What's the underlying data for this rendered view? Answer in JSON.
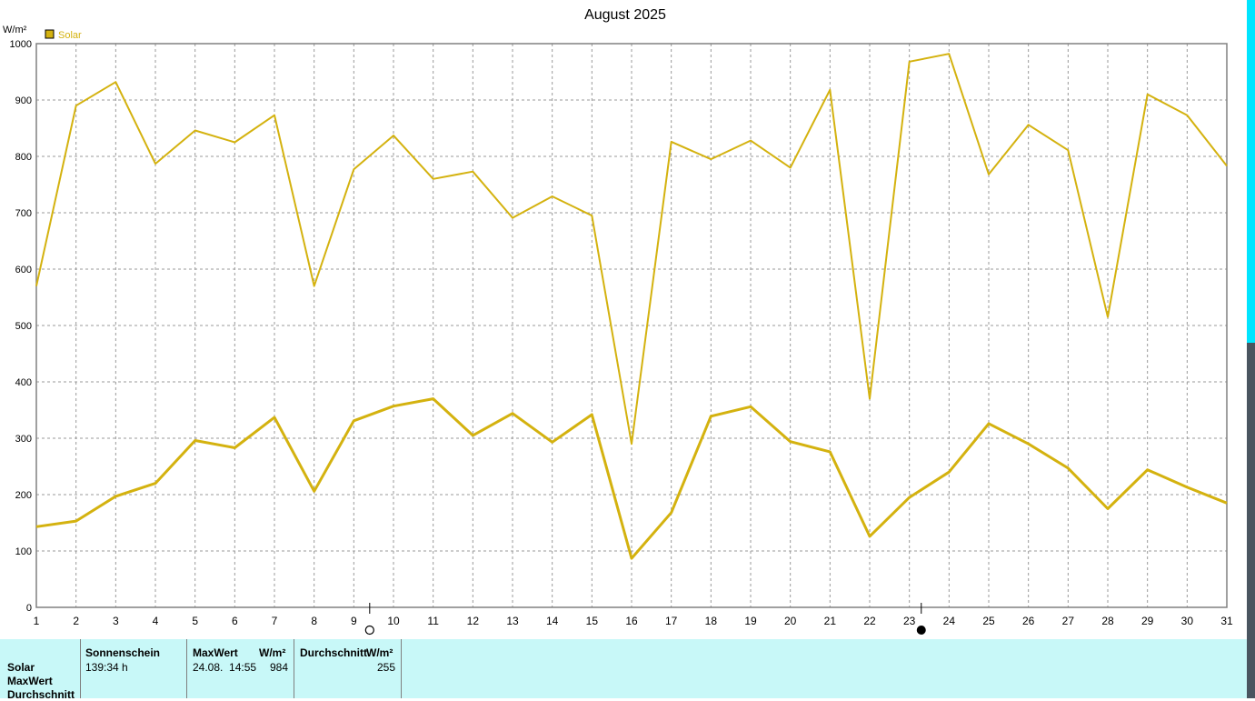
{
  "chart_data": {
    "type": "line",
    "title": "August 2025",
    "ylabel": "W/m²",
    "legend": [
      {
        "name": "Solar",
        "color": "#d4b20f"
      }
    ],
    "legend_position": "top-left",
    "grid": true,
    "ylim": [
      0,
      1000
    ],
    "yticks": [
      "0",
      "100",
      "200",
      "300",
      "400",
      "500",
      "600",
      "700",
      "800",
      "900",
      "1000"
    ],
    "categories": [
      "1",
      "2",
      "3",
      "4",
      "5",
      "6",
      "7",
      "8",
      "9",
      "10",
      "11",
      "12",
      "13",
      "14",
      "15",
      "16",
      "17",
      "18",
      "19",
      "20",
      "21",
      "22",
      "23",
      "24",
      "25",
      "26",
      "27",
      "28",
      "29",
      "30",
      "31"
    ],
    "series": [
      {
        "name": "Solar",
        "stroke": "thin",
        "values": [
          570,
          890,
          932,
          787,
          846,
          825,
          873,
          570,
          777,
          837,
          760,
          773,
          691,
          729,
          695,
          290,
          826,
          795,
          828,
          780,
          918,
          370,
          968,
          982,
          768,
          856,
          811,
          515,
          910,
          873,
          783
        ]
      },
      {
        "name": "Solar",
        "stroke": "thick",
        "values": [
          143,
          153,
          197,
          220,
          296,
          283,
          337,
          206,
          331,
          357,
          370,
          305,
          344,
          293,
          342,
          87,
          168,
          339,
          356,
          294,
          276,
          126,
          195,
          240,
          326,
          290,
          247,
          175,
          244,
          213,
          185
        ]
      }
    ],
    "moon_markers": [
      {
        "phase": "full-moon",
        "position_day": 9.4
      },
      {
        "phase": "new-moon",
        "position_day": 23.3
      }
    ]
  },
  "stats": {
    "row_labels": [
      "Solar",
      "MaxWert",
      "Durchschnitt"
    ],
    "sunshine_header": "Sonnenschein",
    "sunshine_value": "139:34 h",
    "max_header": "MaxWert",
    "max_unit": "W/m²",
    "max_time": "24.08.  14:55",
    "max_value": "984",
    "avg_header": "Durchschnitt",
    "avg_unit": "W/m²",
    "avg_value": "255"
  },
  "colors": {
    "series": "#d4b20f",
    "grid": "#9a9a9a",
    "panel": "#c8f8f8"
  }
}
